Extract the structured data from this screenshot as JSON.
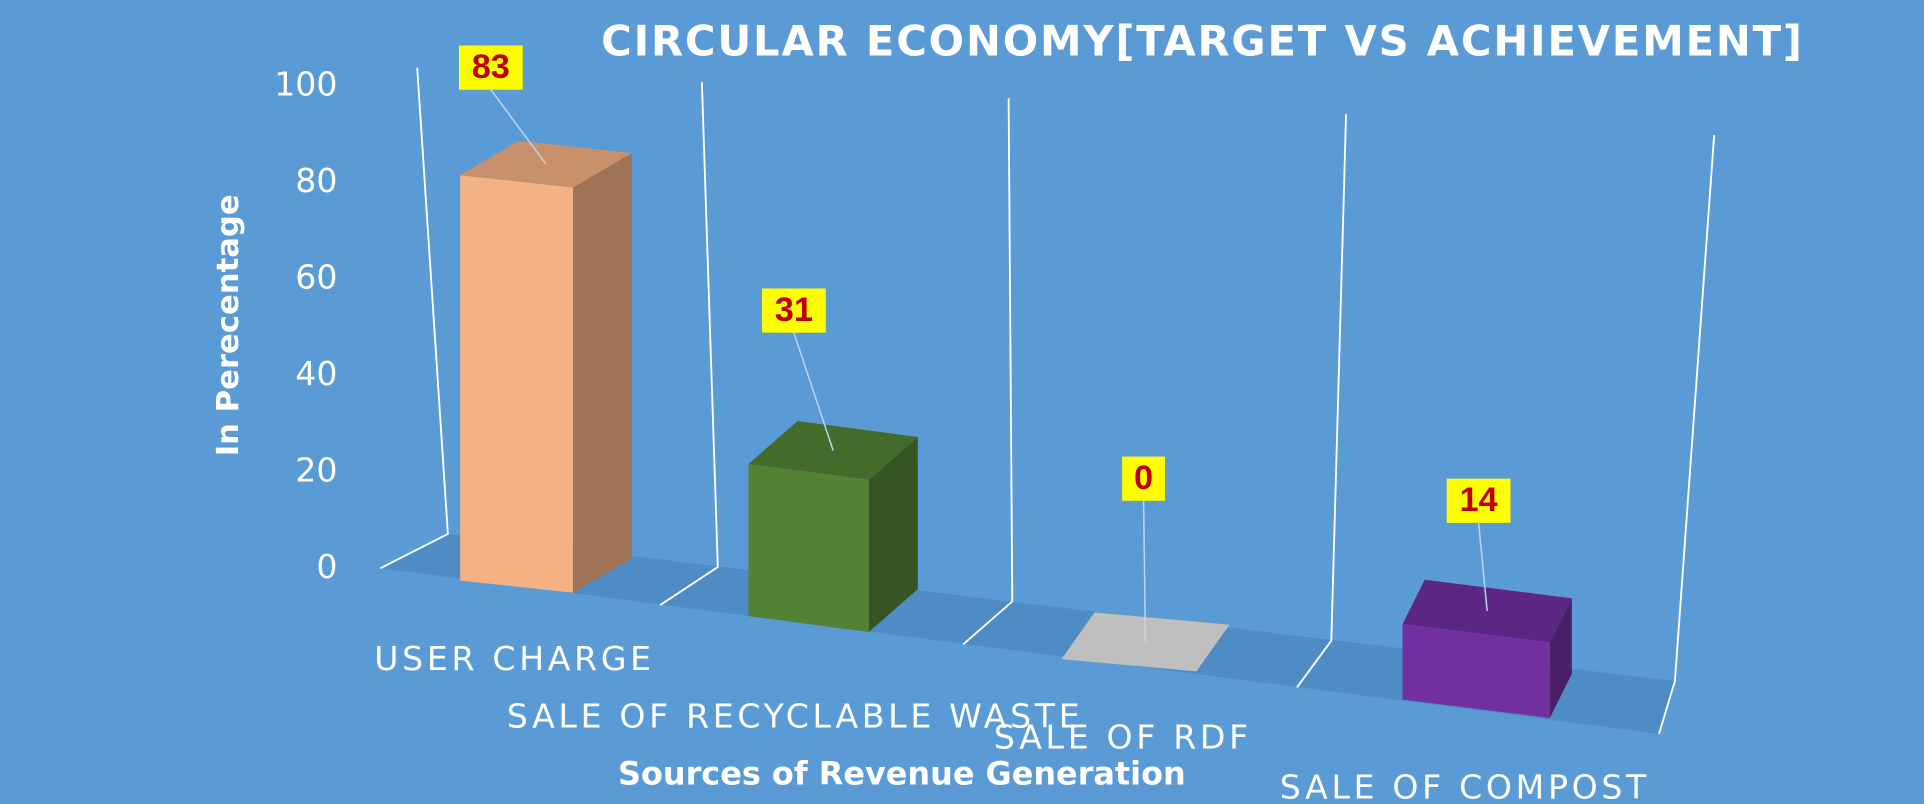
{
  "chart_data": {
    "type": "bar3d",
    "title": "CIRCULAR ECONOMY[TARGET VS ACHIEVEMENT]",
    "y_label": "In Perecentage",
    "x_label": "Sources of Revenue Generation",
    "categories": [
      "USER CHARGE",
      "SALE OF RECYCLABLE WASTE",
      "SALE OF RDF",
      "SALE OF COMPOST"
    ],
    "values": [
      83,
      31,
      0,
      14
    ],
    "colors": [
      "#f4b183",
      "#548235",
      "#bfbfbf",
      "#7030a0"
    ],
    "ylim": [
      0,
      100
    ],
    "yticks": [
      0,
      20,
      40,
      60,
      80,
      100
    ]
  }
}
